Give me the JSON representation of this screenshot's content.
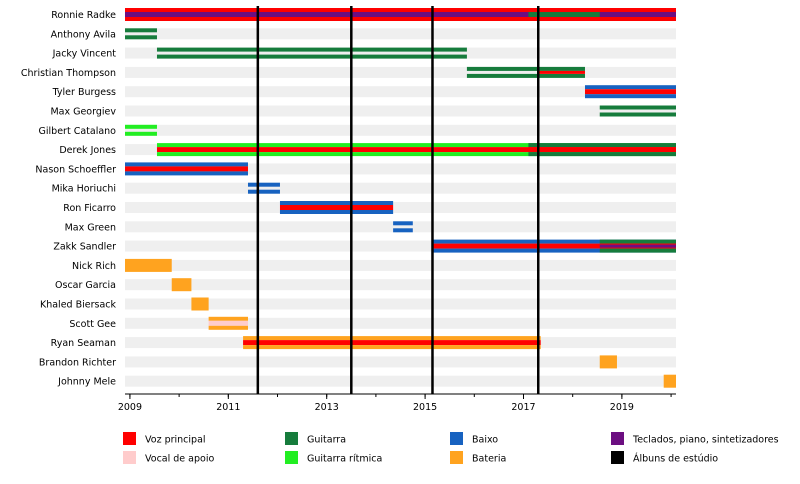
{
  "chart_data": {
    "type": "timeline",
    "title": "",
    "xlabel": "",
    "ylabel": "",
    "xlim": [
      2008.9,
      2020.1
    ],
    "xticks": [
      "2009",
      "2011",
      "2013",
      "2015",
      "2017",
      "2019"
    ],
    "colors": {
      "vocal": "#ff0000",
      "backing": "#ffcccc",
      "guitar": "#167c3c",
      "rhythm": "#22ee22",
      "bass": "#1762c0",
      "drums": "#ffa31f",
      "keys": "#6c0e81",
      "albums": "#000000",
      "rowband": "#efefef"
    },
    "albums": [
      2011.6,
      2013.5,
      2015.15,
      2017.3
    ],
    "legend": [
      {
        "label": "Voz principal",
        "color": "#ff0000"
      },
      {
        "label": "Vocal de apoio",
        "color": "#ffcccc"
      },
      {
        "label": "Guitarra",
        "color": "#167c3c"
      },
      {
        "label": "Guitarra rítmica",
        "color": "#22ee22"
      },
      {
        "label": "Baixo",
        "color": "#1762c0"
      },
      {
        "label": "Bateria",
        "color": "#ffa31f"
      },
      {
        "label": "Teclados, piano, sintetizadores",
        "color": "#6c0e81"
      },
      {
        "label": "Álbuns de estúdio",
        "color": "#000000"
      }
    ],
    "members": [
      {
        "name": "Ronnie Radke",
        "spans": [
          {
            "start": 2008.9,
            "end": 2020.1,
            "style": "tri",
            "colors": [
              "vocal",
              "keys",
              "vocal"
            ]
          },
          {
            "start": 2017.1,
            "end": 2018.55,
            "style": "tri",
            "colors": [
              "vocal",
              "guitar",
              "vocal"
            ]
          }
        ]
      },
      {
        "name": "Anthony Avila",
        "spans": [
          {
            "start": 2008.9,
            "end": 2009.55,
            "style": "double",
            "colors": [
              "guitar"
            ]
          }
        ]
      },
      {
        "name": "Jacky Vincent",
        "spans": [
          {
            "start": 2009.55,
            "end": 2015.85,
            "style": "double",
            "colors": [
              "guitar"
            ]
          }
        ]
      },
      {
        "name": "Christian Thompson",
        "spans": [
          {
            "start": 2015.85,
            "end": 2018.25,
            "style": "double",
            "colors": [
              "guitar"
            ]
          },
          {
            "start": 2017.3,
            "end": 2018.25,
            "style": "thin",
            "colors": [
              "vocal"
            ]
          }
        ]
      },
      {
        "name": "Tyler Burgess",
        "spans": [
          {
            "start": 2018.25,
            "end": 2020.1,
            "style": "tri",
            "colors": [
              "bass",
              "vocal",
              "bass"
            ]
          }
        ]
      },
      {
        "name": "Max Georgiev",
        "spans": [
          {
            "start": 2018.55,
            "end": 2020.1,
            "style": "double",
            "colors": [
              "guitar"
            ]
          }
        ]
      },
      {
        "name": "Gilbert Catalano",
        "spans": [
          {
            "start": 2008.9,
            "end": 2009.55,
            "style": "double",
            "colors": [
              "rhythm"
            ]
          }
        ]
      },
      {
        "name": "Derek Jones",
        "spans": [
          {
            "start": 2009.55,
            "end": 2020.1,
            "style": "tri",
            "colors": [
              "rhythm",
              "vocal",
              "rhythm"
            ]
          },
          {
            "start": 2017.1,
            "end": 2020.1,
            "style": "tri",
            "colors": [
              "guitar",
              "vocal",
              "guitar"
            ]
          }
        ]
      },
      {
        "name": "Nason Schoeffler",
        "spans": [
          {
            "start": 2008.9,
            "end": 2011.4,
            "style": "tri",
            "colors": [
              "bass",
              "vocal",
              "bass"
            ]
          }
        ]
      },
      {
        "name": "Mika Horiuchi",
        "spans": [
          {
            "start": 2011.4,
            "end": 2012.05,
            "style": "double",
            "colors": [
              "bass"
            ]
          }
        ]
      },
      {
        "name": "Ron Ficarro",
        "spans": [
          {
            "start": 2012.05,
            "end": 2014.35,
            "style": "tri",
            "colors": [
              "bass",
              "vocal",
              "bass"
            ]
          }
        ]
      },
      {
        "name": "Max Green",
        "spans": [
          {
            "start": 2014.35,
            "end": 2014.75,
            "style": "double",
            "colors": [
              "bass"
            ]
          }
        ]
      },
      {
        "name": "Zakk Sandler",
        "spans": [
          {
            "start": 2015.15,
            "end": 2020.1,
            "style": "tri",
            "colors": [
              "bass",
              "vocal",
              "bass"
            ]
          },
          {
            "start": 2018.55,
            "end": 2020.1,
            "style": "tri",
            "colors": [
              "guitar",
              "vocal",
              "guitar"
            ]
          },
          {
            "start": 2018.55,
            "end": 2020.1,
            "style": "thin",
            "colors": [
              "keys"
            ]
          }
        ]
      },
      {
        "name": "Nick Rich",
        "spans": [
          {
            "start": 2008.9,
            "end": 2009.85,
            "style": "solid",
            "colors": [
              "drums"
            ]
          }
        ]
      },
      {
        "name": "Oscar Garcia",
        "spans": [
          {
            "start": 2009.85,
            "end": 2010.25,
            "style": "solid",
            "colors": [
              "drums"
            ]
          }
        ]
      },
      {
        "name": "Khaled Biersack",
        "spans": [
          {
            "start": 2010.25,
            "end": 2010.6,
            "style": "solid",
            "colors": [
              "drums"
            ]
          }
        ]
      },
      {
        "name": "Scott Gee",
        "spans": [
          {
            "start": 2010.6,
            "end": 2011.4,
            "style": "tri",
            "colors": [
              "drums",
              "backing",
              "drums"
            ]
          }
        ]
      },
      {
        "name": "Ryan Seaman",
        "spans": [
          {
            "start": 2011.3,
            "end": 2017.35,
            "style": "tri",
            "colors": [
              "drums",
              "vocal",
              "drums"
            ]
          }
        ]
      },
      {
        "name": "Brandon Richter",
        "spans": [
          {
            "start": 2018.55,
            "end": 2018.9,
            "style": "solid",
            "colors": [
              "drums"
            ]
          }
        ]
      },
      {
        "name": "Johnny Mele",
        "spans": [
          {
            "start": 2019.85,
            "end": 2020.1,
            "style": "solid",
            "colors": [
              "drums"
            ]
          }
        ]
      }
    ]
  }
}
